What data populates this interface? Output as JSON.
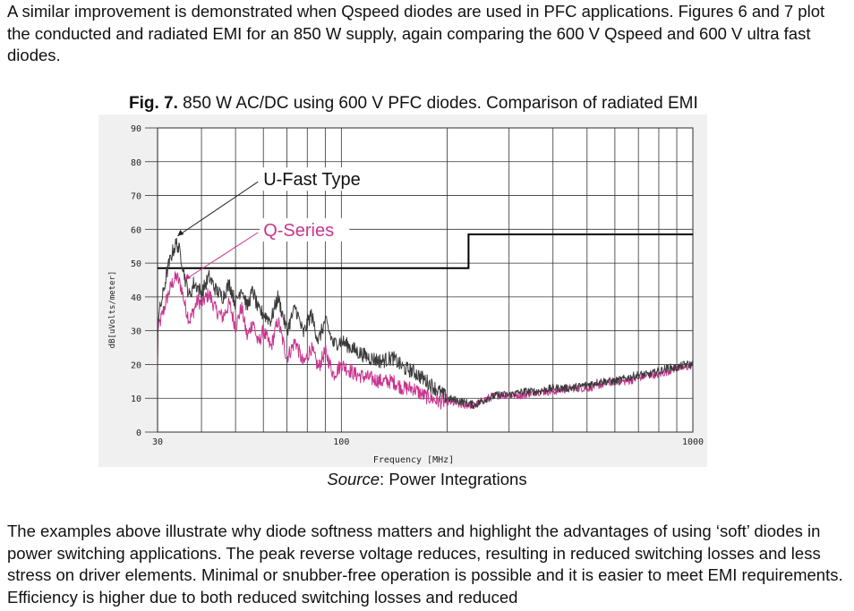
{
  "text": {
    "para_top": "A similar improvement is demonstrated when Qspeed diodes are used in PFC applications. Figures 6 and 7 plot the conducted and radiated EMI for an 850 W supply, again comparing the 600 V Qspeed and 600 V ultra fast diodes.",
    "para_bottom": "The examples above illustrate why diode softness matters and highlight the advantages of using ‘soft’ diodes in power switching applications. The peak reverse voltage reduces, resulting in reduced switching losses and less stress on driver elements. Minimal or snubber-free operation is possible and it is easier to meet EMI requirements. Efficiency is higher due to both reduced switching losses and reduced"
  },
  "figure": {
    "title_bold": "Fig. 7.",
    "title_rest": " 850 W AC/DC using 600 V PFC diodes. Comparison of radiated EMI",
    "source_label": "Source",
    "source_rest": ": Power Integrations"
  },
  "chart_data": {
    "type": "line",
    "xscale": "log",
    "xlim": [
      30,
      1000
    ],
    "ylim": [
      0,
      90
    ],
    "yticks": [
      "90",
      "80",
      "70",
      "60",
      "50",
      "40",
      "30",
      "20",
      "10",
      "0"
    ],
    "xticks": [
      "30",
      "100",
      "1000"
    ],
    "xlabel": "Frequency [MHz]",
    "ylabel": "dB[uVolts/meter]",
    "grid": true,
    "colors": {
      "u_fast": "#3a3a3a",
      "q_series": "#c8358e",
      "limit": "#000000"
    },
    "annotations": [
      {
        "text": "U-Fast Type",
        "color": "#111111",
        "x": 60,
        "y": 73
      },
      {
        "text": "Q-Series",
        "color": "#c8358e",
        "x": 60,
        "y": 58
      }
    ],
    "limit_line": {
      "x": [
        30,
        230,
        230,
        1000
      ],
      "y": [
        48.5,
        48.5,
        58.5,
        58.5
      ]
    },
    "series": [
      {
        "name": "U-Fast Type",
        "x": [
          30,
          31,
          32,
          33,
          34,
          35,
          36,
          37,
          38,
          39,
          40,
          42,
          44,
          46,
          48,
          50,
          52,
          54,
          56,
          58,
          60,
          63,
          66,
          70,
          74,
          78,
          82,
          86,
          90,
          95,
          100,
          110,
          120,
          130,
          140,
          150,
          160,
          170,
          180,
          190,
          200,
          220,
          240,
          260,
          280,
          300,
          330,
          360,
          400,
          450,
          500,
          550,
          600,
          650,
          700,
          750,
          800,
          850,
          900,
          950,
          1000
        ],
        "y": [
          33,
          40,
          48,
          53,
          56,
          52,
          45,
          40,
          44,
          43,
          41,
          46,
          42,
          40,
          44,
          38,
          43,
          37,
          42,
          36,
          35,
          33,
          40,
          30,
          37,
          29,
          35,
          27,
          33,
          26,
          27,
          24,
          22,
          21,
          22,
          19,
          18,
          16,
          14,
          12,
          10,
          9,
          8,
          10,
          11,
          11,
          12,
          12,
          13,
          13,
          14,
          15,
          15,
          16,
          17,
          17,
          18,
          19,
          19,
          20,
          20
        ]
      },
      {
        "name": "Q-Series",
        "x": [
          30,
          31,
          32,
          33,
          34,
          35,
          36,
          37,
          38,
          39,
          40,
          42,
          44,
          46,
          48,
          50,
          52,
          54,
          56,
          58,
          60,
          63,
          66,
          70,
          74,
          78,
          82,
          86,
          90,
          95,
          100,
          110,
          120,
          130,
          140,
          150,
          160,
          170,
          180,
          190,
          200,
          220,
          240,
          260,
          280,
          300,
          330,
          360,
          400,
          450,
          500,
          550,
          600,
          650,
          700,
          750,
          800,
          850,
          900,
          950,
          1000
        ],
        "y": [
          30,
          35,
          40,
          44,
          46,
          43,
          37,
          33,
          36,
          39,
          38,
          41,
          36,
          34,
          38,
          31,
          37,
          28,
          33,
          26,
          30,
          25,
          33,
          22,
          27,
          20,
          25,
          19,
          24,
          17,
          20,
          17,
          16,
          15,
          15,
          13,
          13,
          11,
          10,
          9,
          9,
          8,
          8,
          10,
          11,
          11,
          11,
          12,
          12,
          13,
          13,
          14,
          15,
          15,
          16,
          17,
          17,
          18,
          19,
          19,
          20
        ]
      }
    ]
  }
}
